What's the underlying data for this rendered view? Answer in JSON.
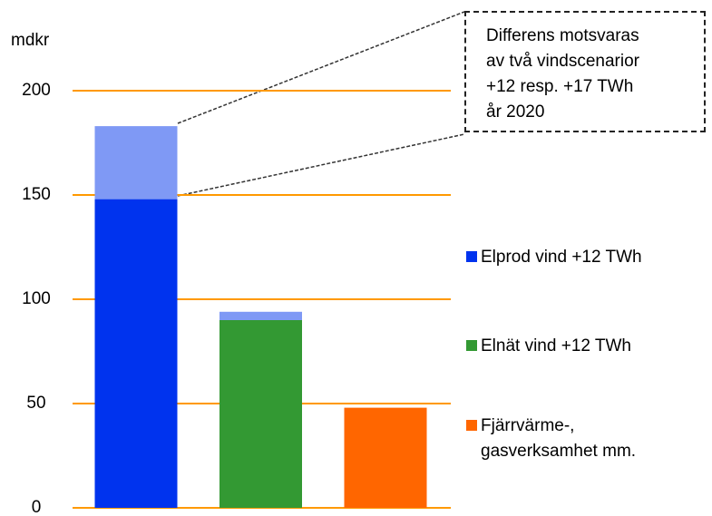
{
  "chart_data": {
    "type": "stacked-bar",
    "y_unit": "mdkr",
    "annotation": "Differens motsvaras\nav två vindscenarior\n+12 resp. +17 TWh\når 2020",
    "categories": [
      null,
      null,
      null
    ],
    "series": [
      {
        "name": "Elprod vind +12 TWh",
        "color": "#0033ee",
        "values": [
          148,
          null,
          null
        ]
      },
      {
        "name": "Elnät  vind +12 TWh",
        "color": "#339933",
        "values": [
          null,
          90,
          null
        ]
      },
      {
        "name": "Fjärrvärme-,\ngasverksamhet  mm.",
        "color": "#ff6600",
        "values": [
          null,
          null,
          48
        ]
      },
      {
        "color": "#7f99f5",
        "values": [
          35,
          4,
          null
        ]
      }
    ],
    "ylim": [
      0,
      200
    ],
    "yticks": [
      0,
      50,
      100,
      150,
      200
    ],
    "grid": true,
    "grid_color": "#ff9900"
  }
}
